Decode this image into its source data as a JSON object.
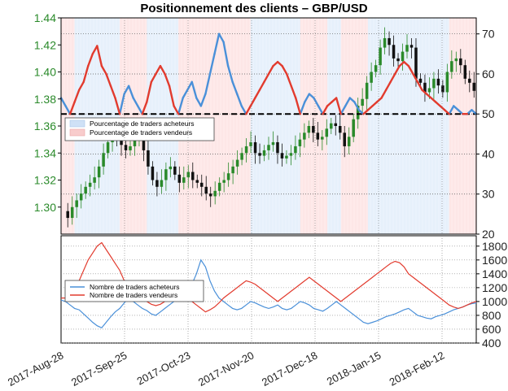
{
  "chart_data": [
    {
      "type": "candlestick-with-overlay",
      "title": "Positionnement des clients – GBP/USD",
      "left_axis": {
        "range": [
          1.28,
          1.44
        ],
        "ticks": [
          "1.30",
          "1.32",
          "1.34",
          "1.36",
          "1.38",
          "1.40",
          "1.42",
          "1.44"
        ],
        "color": "#2a8a2a"
      },
      "right_axis": {
        "range": [
          20,
          74
        ],
        "ticks": [
          "20",
          "30",
          "40",
          "50",
          "60",
          "70"
        ]
      },
      "reference_line": 50,
      "legend": {
        "position": "left-middle",
        "entries": [
          {
            "name": "Pourcentage de traders acheteurs",
            "color": "#4a90d9"
          },
          {
            "name": "Pourcentage de traders vendeurs",
            "color": "#e23b2e"
          }
        ]
      },
      "price_path": [
        1.297,
        1.292,
        1.3,
        1.305,
        1.31,
        1.315,
        1.318,
        1.322,
        1.33,
        1.34,
        1.348,
        1.352,
        1.35,
        1.346,
        1.342,
        1.345,
        1.35,
        1.352,
        1.342,
        1.33,
        1.32,
        1.315,
        1.32,
        1.328,
        1.33,
        1.324,
        1.318,
        1.322,
        1.326,
        1.32,
        1.318,
        1.315,
        1.31,
        1.308,
        1.312,
        1.318,
        1.32,
        1.325,
        1.33,
        1.335,
        1.34,
        1.345,
        1.348,
        1.34,
        1.338,
        1.342,
        1.346,
        1.348,
        1.34,
        1.336,
        1.338,
        1.34,
        1.345,
        1.35,
        1.355,
        1.36,
        1.355,
        1.35,
        1.352,
        1.358,
        1.362,
        1.36,
        1.355,
        1.345,
        1.352,
        1.365,
        1.375,
        1.38,
        1.392,
        1.4,
        1.405,
        1.418,
        1.425,
        1.42,
        1.41,
        1.408,
        1.415,
        1.42,
        1.418,
        1.395,
        1.392,
        1.385,
        1.388,
        1.395,
        1.39,
        1.385,
        1.4,
        1.408,
        1.41,
        1.405,
        1.395,
        1.392,
        1.386
      ],
      "series_long_pct": [
        54,
        52,
        50,
        47,
        44,
        42,
        38,
        35,
        33,
        38,
        40,
        43,
        46,
        50,
        55,
        57,
        54,
        52,
        50,
        47,
        42,
        40,
        38,
        40,
        43,
        48,
        50,
        54,
        56,
        58,
        54,
        52,
        55,
        60,
        65,
        70,
        68,
        62,
        58,
        55,
        52,
        50,
        48,
        46,
        44,
        42,
        40,
        38,
        37,
        38,
        40,
        43,
        46,
        50,
        53,
        55,
        54,
        52,
        50,
        48,
        47,
        46,
        50,
        52,
        54,
        53,
        51,
        50,
        49,
        48,
        47,
        46,
        44,
        42,
        40,
        38,
        37,
        38,
        40,
        42,
        44,
        45,
        46,
        47,
        48,
        49,
        50,
        52,
        51,
        50,
        50,
        51,
        50
      ],
      "series_short_pct": [
        46,
        48,
        50,
        53,
        56,
        58,
        62,
        65,
        67,
        62,
        60,
        57,
        54,
        50,
        45,
        43,
        46,
        48,
        50,
        53,
        58,
        60,
        62,
        60,
        57,
        52,
        50,
        46,
        44,
        42,
        46,
        48,
        45,
        40,
        35,
        30,
        32,
        38,
        42,
        45,
        48,
        50,
        52,
        54,
        56,
        58,
        60,
        62,
        63,
        62,
        60,
        57,
        54,
        50,
        47,
        45,
        46,
        48,
        50,
        52,
        53,
        54,
        50,
        48,
        46,
        47,
        49,
        50,
        51,
        52,
        53,
        54,
        56,
        58,
        60,
        62,
        63,
        62,
        60,
        58,
        56,
        55,
        54,
        53,
        52,
        51,
        50,
        48,
        49,
        50,
        50,
        49,
        50
      ]
    },
    {
      "type": "line",
      "y_axis": {
        "range": [
          400,
          1950
        ],
        "ticks": [
          "400",
          "600",
          "800",
          "1000",
          "1200",
          "1400",
          "1600",
          "1800"
        ]
      },
      "x_axis": {
        "ticks": [
          "2017-Aug-28",
          "2017-Sep-25",
          "2017-Oct-23",
          "2017-Nov-20",
          "2017-Dec-18",
          "2018-Jan-15",
          "2018-Feb-12"
        ]
      },
      "legend": {
        "position": "left-middle",
        "entries": [
          {
            "name": "Nombre de traders acheteurs",
            "color": "#4a90d9"
          },
          {
            "name": "Nombre de traders vendeurs",
            "color": "#e23b2e"
          }
        ]
      },
      "series_buyers": [
        1020,
        1000,
        950,
        900,
        880,
        820,
        760,
        700,
        650,
        620,
        700,
        780,
        850,
        900,
        980,
        1050,
        1000,
        950,
        900,
        870,
        820,
        800,
        850,
        900,
        950,
        1000,
        1050,
        1100,
        1150,
        1250,
        1400,
        1600,
        1500,
        1300,
        1150,
        1050,
        1000,
        950,
        900,
        880,
        900,
        950,
        1000,
        980,
        950,
        920,
        900,
        920,
        950,
        900,
        880,
        900,
        950,
        1000,
        980,
        950,
        900,
        880,
        860,
        900,
        950,
        1000,
        950,
        900,
        850,
        800,
        750,
        700,
        680,
        700,
        720,
        750,
        780,
        800,
        820,
        850,
        880,
        900,
        850,
        800,
        780,
        760,
        750,
        780,
        800,
        820,
        850,
        880,
        900,
        920,
        950,
        970,
        980
      ],
      "series_sellers": [
        1050,
        1050,
        1100,
        1200,
        1300,
        1450,
        1600,
        1700,
        1800,
        1850,
        1750,
        1650,
        1550,
        1450,
        1300,
        1200,
        1150,
        1100,
        1050,
        1000,
        960,
        940,
        960,
        1000,
        1050,
        1100,
        1150,
        1100,
        1050,
        1000,
        950,
        900,
        850,
        880,
        920,
        980,
        1050,
        1100,
        1150,
        1200,
        1250,
        1300,
        1280,
        1250,
        1200,
        1150,
        1100,
        1050,
        1000,
        1050,
        1100,
        1150,
        1200,
        1250,
        1300,
        1350,
        1300,
        1250,
        1200,
        1150,
        1100,
        1050,
        1000,
        1050,
        1100,
        1150,
        1200,
        1250,
        1300,
        1350,
        1400,
        1450,
        1500,
        1550,
        1580,
        1560,
        1500,
        1400,
        1350,
        1300,
        1250,
        1200,
        1150,
        1100,
        1050,
        1000,
        950,
        920,
        900,
        920,
        950,
        980,
        1000
      ]
    }
  ]
}
